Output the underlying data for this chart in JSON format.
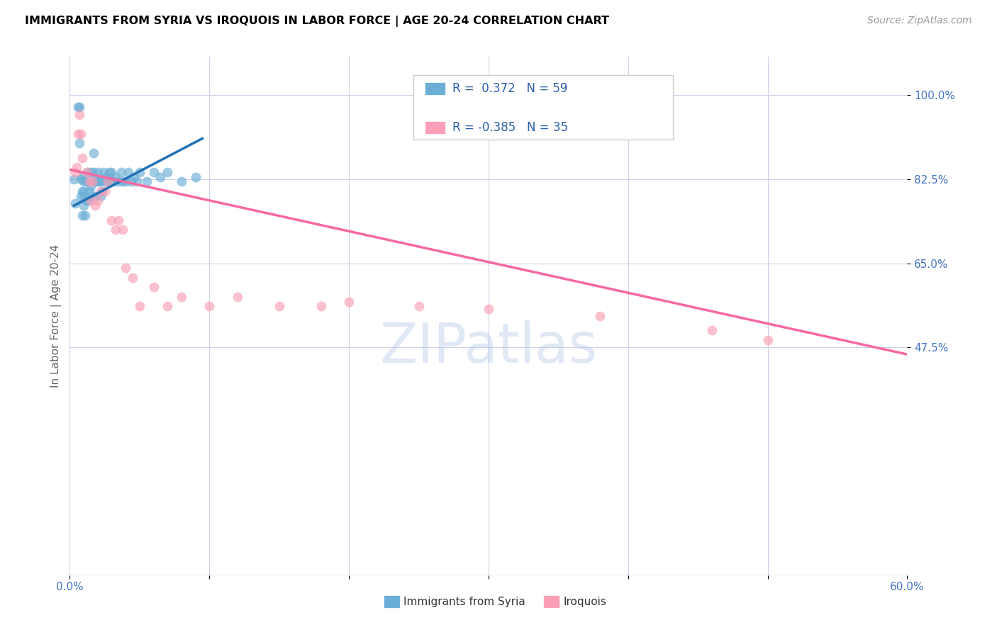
{
  "title": "IMMIGRANTS FROM SYRIA VS IROQUOIS IN LABOR FORCE | AGE 20-24 CORRELATION CHART",
  "source": "Source: ZipAtlas.com",
  "ylabel": "In Labor Force | Age 20-24",
  "xlim": [
    0.0,
    0.6
  ],
  "ylim": [
    0.0,
    1.08
  ],
  "xticks": [
    0.0,
    0.1,
    0.2,
    0.3,
    0.4,
    0.5,
    0.6
  ],
  "xticklabels": [
    "0.0%",
    "",
    "",
    "",
    "",
    "",
    "60.0%"
  ],
  "ytick_positions": [
    0.475,
    0.65,
    0.825,
    1.0
  ],
  "ytick_labels": [
    "47.5%",
    "65.0%",
    "82.5%",
    "100.0%"
  ],
  "watermark": "ZIPatlas",
  "legend_syria_r": "0.372",
  "legend_syria_n": "59",
  "legend_iroquois_r": "-0.385",
  "legend_iroquois_n": "35",
  "blue_color": "#6baed6",
  "pink_color": "#fa9fb5",
  "blue_line_color": "#2171b5",
  "pink_line_color": "#f768a1",
  "grid_color": "#d0d0e8",
  "syria_scatter_x": [
    0.003,
    0.004,
    0.006,
    0.007,
    0.007,
    0.008,
    0.008,
    0.009,
    0.009,
    0.009,
    0.01,
    0.01,
    0.01,
    0.01,
    0.011,
    0.012,
    0.012,
    0.013,
    0.013,
    0.013,
    0.014,
    0.015,
    0.015,
    0.015,
    0.016,
    0.017,
    0.017,
    0.018,
    0.018,
    0.019,
    0.02,
    0.021,
    0.022,
    0.022,
    0.023,
    0.024,
    0.025,
    0.026,
    0.027,
    0.028,
    0.029,
    0.03,
    0.032,
    0.033,
    0.035,
    0.037,
    0.038,
    0.04,
    0.042,
    0.044,
    0.046,
    0.048,
    0.05,
    0.055,
    0.06,
    0.065,
    0.07,
    0.08,
    0.09
  ],
  "syria_scatter_y": [
    0.825,
    0.775,
    0.975,
    0.975,
    0.9,
    0.825,
    0.79,
    0.83,
    0.8,
    0.75,
    0.82,
    0.8,
    0.79,
    0.77,
    0.75,
    0.82,
    0.78,
    0.84,
    0.82,
    0.78,
    0.8,
    0.84,
    0.81,
    0.79,
    0.82,
    0.88,
    0.84,
    0.82,
    0.79,
    0.82,
    0.84,
    0.82,
    0.79,
    0.82,
    0.8,
    0.84,
    0.82,
    0.83,
    0.82,
    0.84,
    0.82,
    0.84,
    0.82,
    0.83,
    0.82,
    0.84,
    0.82,
    0.82,
    0.84,
    0.82,
    0.83,
    0.82,
    0.84,
    0.82,
    0.84,
    0.83,
    0.84,
    0.82,
    0.83
  ],
  "iroquois_scatter_x": [
    0.004,
    0.005,
    0.006,
    0.007,
    0.008,
    0.009,
    0.012,
    0.014,
    0.015,
    0.016,
    0.018,
    0.02,
    0.022,
    0.025,
    0.027,
    0.03,
    0.033,
    0.035,
    0.038,
    0.04,
    0.045,
    0.05,
    0.06,
    0.07,
    0.08,
    0.1,
    0.12,
    0.15,
    0.18,
    0.2,
    0.25,
    0.3,
    0.38,
    0.46,
    0.5
  ],
  "iroquois_scatter_y": [
    0.84,
    0.85,
    0.92,
    0.96,
    0.92,
    0.87,
    0.84,
    0.82,
    0.78,
    0.82,
    0.77,
    0.78,
    0.8,
    0.8,
    0.82,
    0.74,
    0.72,
    0.74,
    0.72,
    0.64,
    0.62,
    0.56,
    0.6,
    0.56,
    0.58,
    0.56,
    0.58,
    0.56,
    0.56,
    0.57,
    0.56,
    0.555,
    0.54,
    0.51,
    0.49
  ],
  "syria_trend_x": [
    0.003,
    0.095
  ],
  "syria_trend_y": [
    0.77,
    0.91
  ],
  "iroquois_trend_x": [
    0.0,
    0.6
  ],
  "iroquois_trend_y": [
    0.845,
    0.46
  ]
}
